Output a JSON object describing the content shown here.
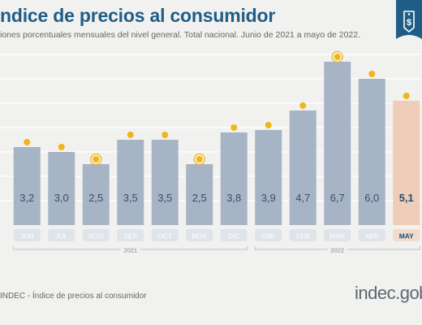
{
  "header": {
    "title": "ndice de precios al consumidor",
    "subtitle": "iones porcentuales mensuales del nivel general. Total nacional. Junio de 2021 a mayo de 2022."
  },
  "footer": {
    "source": "INDEC - Índice de precios al consumidor",
    "logo": "indec.gob"
  },
  "colors": {
    "accent": "#1f5d87",
    "bar": "#a6b4c6",
    "bar_highlight": "#f0cdb8",
    "dot": "#f1b51c",
    "month_pill": "#dfe4ea",
    "month_pill_highlight": "#f3dacb"
  },
  "icons": {
    "badge": "price-tag-dollar-icon"
  },
  "chart_data": {
    "type": "bar",
    "categories": [
      "JUN",
      "JUL",
      "AGO",
      "SEP",
      "OCT",
      "NOV",
      "DIC",
      "ENE",
      "FEB",
      "MAR",
      "ABR",
      "MAY"
    ],
    "values": [
      3.2,
      3.0,
      2.5,
      3.5,
      3.5,
      2.5,
      3.8,
      3.9,
      4.7,
      6.7,
      6.0,
      5.1
    ],
    "value_labels": [
      "3,2",
      "3,0",
      "2,5",
      "3,5",
      "3,5",
      "2,5",
      "3,8",
      "3,9",
      "4,7",
      "6,7",
      "6,0",
      "5,1"
    ],
    "year_groups": [
      {
        "label": "2021",
        "categories": [
          "JUN",
          "JUL",
          "AGO",
          "SEP",
          "OCT",
          "NOV",
          "DIC"
        ]
      },
      {
        "label": "2022",
        "categories": [
          "ENE",
          "FEB",
          "MAR",
          "ABR",
          "MAY"
        ]
      }
    ],
    "highlighted": [
      "AGO",
      "NOV",
      "MAR",
      "MAY"
    ],
    "title": "ndice de precios al consumidor",
    "xlabel": "",
    "ylabel": "",
    "ylim": [
      0,
      7
    ],
    "grid": true
  }
}
